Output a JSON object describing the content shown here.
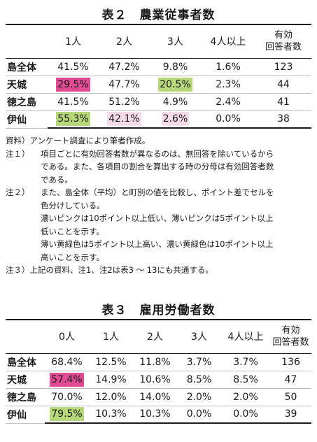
{
  "table1": {
    "title": "表２　農業従事者数",
    "headers": [
      "",
      "1人",
      "2人",
      "3人",
      "4人以上",
      "有効",
      "回答者数"
    ],
    "rows": [
      {
        "label": "島全体",
        "cells": [
          "41.5%",
          "47.2%",
          "9.8%",
          "1.6%"
        ],
        "count": "123"
      },
      {
        "label": "天城",
        "cells": [
          "29.5%",
          "47.7%",
          "20.5%",
          "2.3%"
        ],
        "count": "44"
      },
      {
        "label": "徳之島",
        "cells": [
          "41.5%",
          "51.2%",
          "4.9%",
          "2.4%"
        ],
        "count": "41"
      },
      {
        "label": "伊仙",
        "cells": [
          "55.3%",
          "42.1%",
          "2.6%",
          "0.0%"
        ],
        "count": "38"
      }
    ]
  },
  "notes": {
    "source": "資料）アンケート調査により筆者作成。",
    "n1_label": "注１）",
    "n1_a": "項目ごとに有効回答者数が異なるのは、無回答を除いているから",
    "n1_b": "である。また、各項目の割合を算出する時の分母は有効回答者数",
    "n1_c": "である。",
    "n2_label": "注２）",
    "n2_a": "また、島全体（平均）と町別の値を比較し、ポイント差でセルを",
    "n2_b": "色分けしている。",
    "n2_c": "濃いピンクは10ポイント以上低い、薄いピンクは5ポイント以上",
    "n2_d": "低いことを示す。",
    "n2_e": "薄い黄緑色は5ポイント以上高い、濃い黄緑色は10ポイント以上",
    "n2_f": "高いことを示す。",
    "n3": "注３）上記の資料、注1、注2は表3 ～ 13にも共通する。"
  },
  "table2": {
    "title": "表３　雇用労働者数",
    "headers": [
      "",
      "0人",
      "1人",
      "2人",
      "3人",
      "4人以上",
      "有効",
      "回答者数"
    ],
    "rows": [
      {
        "label": "島全体",
        "cells": [
          "68.4%",
          "12.5%",
          "11.8%",
          "3.7%",
          "3.7%"
        ],
        "count": "136"
      },
      {
        "label": "天城",
        "cells": [
          "57.4%",
          "14.9%",
          "10.6%",
          "8.5%",
          "8.5%"
        ],
        "count": "47"
      },
      {
        "label": "徳之島",
        "cells": [
          "70.0%",
          "12.0%",
          "14.0%",
          "2.0%",
          "2.0%"
        ],
        "count": "50"
      },
      {
        "label": "伊仙",
        "cells": [
          "79.5%",
          "10.3%",
          "10.3%",
          "0.0%",
          "0.0%"
        ],
        "count": "39"
      }
    ]
  },
  "colors": {
    "pink_dark": "#e14b93",
    "pink_light": "#f6dbe8",
    "green_light": "#b6d87a"
  }
}
